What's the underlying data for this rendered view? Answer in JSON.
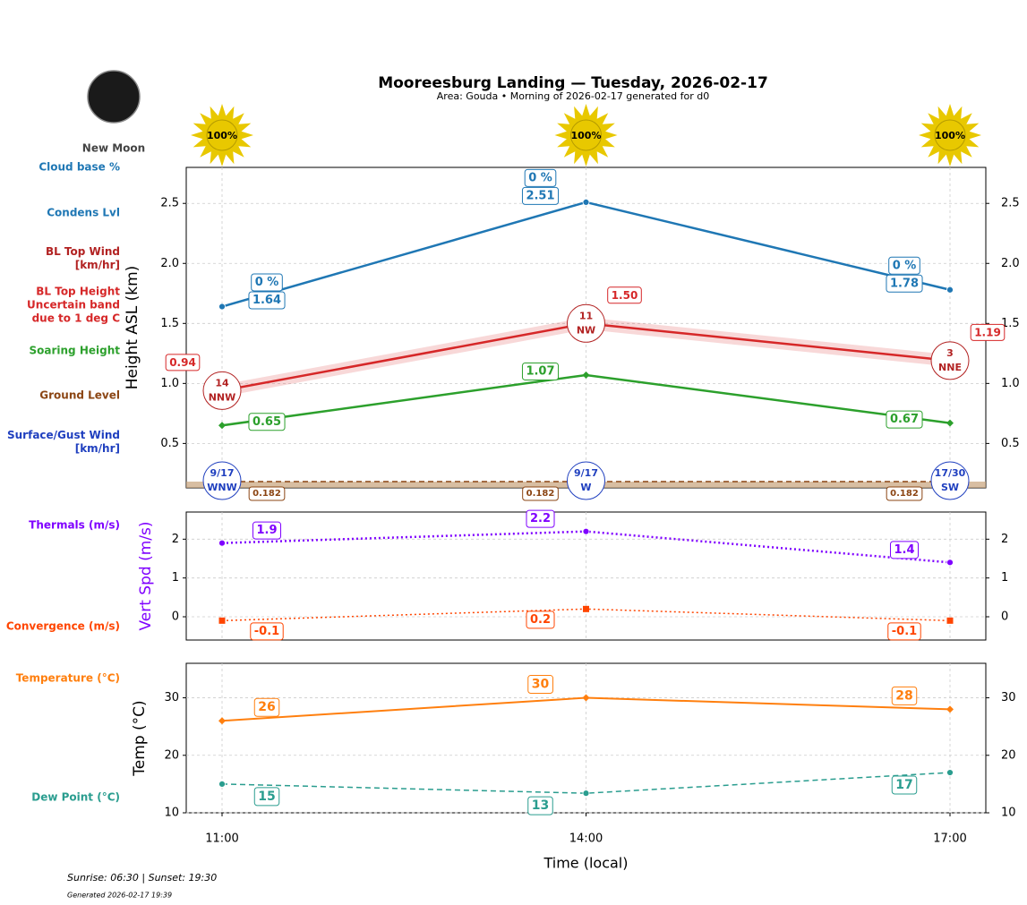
{
  "header": {
    "title": "Mooreesburg Landing — Tuesday, 2026-02-17",
    "subtitle": "Area: Gouda • Morning of 2026-02-17 generated for d0"
  },
  "moon": {
    "phase": "New Moon"
  },
  "sun": {
    "values": [
      100,
      100,
      100
    ],
    "value_labels": [
      "100%",
      "100%",
      "100%"
    ]
  },
  "footer": {
    "sun_times": "Sunrise: 06:30 | Sunset: 19:30",
    "generated": "Generated 2026-02-17 19:39"
  },
  "chart_data": [
    {
      "type": "line",
      "ylabel": "Height ASL (km)",
      "ylim": [
        0.13,
        2.8
      ],
      "yticks": [
        0.5,
        {
          "value": 1,
          "label": "1.0"
        },
        1.5,
        {
          "value": 2,
          "label": "2.0"
        },
        2.5
      ],
      "grid": true,
      "series": [
        {
          "name": "Cloud base %",
          "color": "#1f77b4",
          "values": [
            0,
            0,
            0
          ],
          "value_labels": [
            "0 %",
            "0 %",
            "0 %"
          ]
        },
        {
          "name": "Condens Lvl",
          "color": "#1f77b4",
          "values": [
            1.64,
            2.51,
            1.78
          ],
          "marker": "circle",
          "linestyle": "solid"
        },
        {
          "name": "BL Top Wind\n[km/hr]",
          "color": "#b22222",
          "values": [
            14,
            11,
            3
          ],
          "directions": [
            "NNW",
            "NW",
            "NNE"
          ]
        },
        {
          "name": "BL Top Height\nUncertain band\ndue to 1 deg C",
          "color": "#d62728",
          "values": [
            0.94,
            1.5,
            1.19
          ],
          "value_labels": [
            "0.94",
            "1.50",
            "1.19"
          ],
          "lower": [
            0.89,
            1.45,
            1.14
          ],
          "upper": [
            0.99,
            1.55,
            1.24
          ],
          "linestyle": "solid"
        },
        {
          "name": "Soaring Height",
          "color": "#2ca02c",
          "values": [
            0.65,
            1.07,
            0.67
          ],
          "marker": "diamond",
          "linestyle": "solid"
        },
        {
          "name": "Ground Level",
          "color": "#8b4513",
          "values": [
            0.182,
            0.182,
            0.182
          ],
          "linestyle": "dashed"
        },
        {
          "name": "Surface/Gust Wind\n[km/hr]",
          "color": "#1f3fbf",
          "values": [
            9,
            9,
            17
          ],
          "gusts": [
            17,
            17,
            30
          ],
          "value_labels": [
            "9/17",
            "9/17",
            "17/30"
          ],
          "directions": [
            "WNW",
            "W",
            "SW"
          ]
        }
      ]
    },
    {
      "type": "line",
      "ylabel": "Vert Spd (m/s)",
      "ylabel_color": "#7f00ff",
      "ylim": [
        -0.6,
        2.7
      ],
      "yticks": [
        0,
        1,
        2
      ],
      "grid": true,
      "series": [
        {
          "name": "Thermals (m/s)",
          "color": "#7f00ff",
          "values": [
            1.9,
            2.2,
            1.4
          ],
          "marker": "circle",
          "linestyle": "dotted"
        },
        {
          "name": "Convergence (m/s)",
          "color": "#ff4500",
          "values": [
            -0.1,
            0.2,
            -0.1
          ],
          "marker": "square",
          "linestyle": "dotted"
        }
      ]
    },
    {
      "type": "line",
      "ylabel": "Temp (°C)",
      "xlabel": "Time (local)",
      "categories": [
        "11:00",
        "14:00",
        "17:00"
      ],
      "ylim": [
        10,
        36
      ],
      "yticks": [
        10,
        20,
        30
      ],
      "grid": true,
      "series": [
        {
          "name": "Temperature (°C)",
          "color": "#ff7f0e",
          "values": [
            26,
            30,
            28
          ],
          "marker": "diamond",
          "linestyle": "solid"
        },
        {
          "name": "Dew Point (°C)",
          "color": "#2a9d8f",
          "values": [
            15,
            13.4,
            17
          ],
          "value_labels": [
            "15",
            "13",
            "17"
          ],
          "marker": "circle",
          "linestyle": "dashed"
        }
      ]
    }
  ]
}
